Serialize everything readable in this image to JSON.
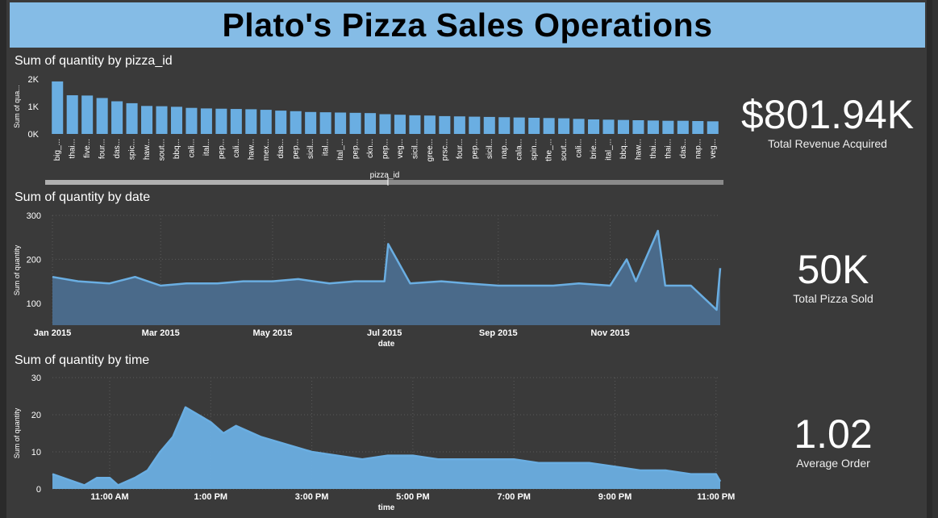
{
  "header": {
    "title": "Plato's Pizza Sales Operations"
  },
  "colors": {
    "bar": "#6aaee2",
    "line": "#6aaee2",
    "area": "#4a6a8a",
    "background": "#3a3a3a",
    "banner": "#85bce6"
  },
  "kpis": [
    {
      "value": "$801.94K",
      "label": "Total Revenue Acquired"
    },
    {
      "value": "50K",
      "label": "Total Pizza Sold"
    },
    {
      "value": "1.02",
      "label": "Average Order"
    }
  ],
  "chart_data": [
    {
      "type": "bar",
      "title": "Sum of quantity by pizza_id",
      "xlabel": "pizza_id",
      "ylabel": "Sum of qua...",
      "ylim": [
        0,
        2000
      ],
      "yticks": [
        {
          "v": 0,
          "label": "0K"
        },
        {
          "v": 1000,
          "label": "1K"
        },
        {
          "v": 2000,
          "label": "2K"
        }
      ],
      "categories": [
        "big_...",
        "thai...",
        "five...",
        "four...",
        "das...",
        "spic...",
        "haw...",
        "sout...",
        "bbq...",
        "cali...",
        "ital...",
        "pep...",
        "cali...",
        "haw...",
        "mex...",
        "das...",
        "pep...",
        "sicil...",
        "ital...",
        "ital_...",
        "pep...",
        "ckn...",
        "pep...",
        "veg...",
        "sicil...",
        "gree...",
        "prsc...",
        "four...",
        "pep...",
        "sicil...",
        "nap...",
        "cala...",
        "spin...",
        "the_...",
        "sout...",
        "cali...",
        "brie...",
        "ital_...",
        "bbq...",
        "haw...",
        "thai...",
        "thai...",
        "das...",
        "nap...",
        "veg..."
      ],
      "values": [
        1914,
        1410,
        1400,
        1310,
        1190,
        1120,
        1020,
        1010,
        990,
        950,
        930,
        920,
        910,
        900,
        880,
        850,
        830,
        800,
        790,
        780,
        770,
        760,
        720,
        700,
        680,
        670,
        650,
        640,
        630,
        620,
        610,
        600,
        590,
        580,
        570,
        550,
        530,
        520,
        510,
        500,
        490,
        480,
        480,
        470,
        460
      ],
      "grid": false
    },
    {
      "type": "area",
      "title": "Sum of quantity by date",
      "xlabel": "date",
      "ylabel": "Sum of quantity",
      "ylim": [
        50,
        300
      ],
      "yticks": [
        100,
        200,
        300
      ],
      "xlim": [
        "2015-01-01",
        "2015-12-31"
      ],
      "xticks": [
        "Jan 2015",
        "Mar 2015",
        "May 2015",
        "Jul 2015",
        "Sep 2015",
        "Nov 2015"
      ],
      "x": [
        "2015-01-01",
        "2015-01-15",
        "2015-02-01",
        "2015-02-15",
        "2015-03-01",
        "2015-03-15",
        "2015-04-01",
        "2015-04-15",
        "2015-05-01",
        "2015-05-15",
        "2015-06-01",
        "2015-06-15",
        "2015-07-01",
        "2015-07-03",
        "2015-07-15",
        "2015-08-01",
        "2015-08-15",
        "2015-09-01",
        "2015-09-15",
        "2015-10-01",
        "2015-10-15",
        "2015-11-01",
        "2015-11-10",
        "2015-11-15",
        "2015-11-27",
        "2015-12-01",
        "2015-12-15",
        "2015-12-29",
        "2015-12-31"
      ],
      "values": [
        160,
        150,
        145,
        160,
        140,
        145,
        145,
        150,
        150,
        155,
        145,
        150,
        150,
        235,
        145,
        150,
        145,
        140,
        140,
        140,
        145,
        140,
        200,
        150,
        265,
        140,
        140,
        85,
        180
      ],
      "grid": true
    },
    {
      "type": "area",
      "title": "Sum of quantity by time",
      "xlabel": "time",
      "ylabel": "Sum of quantity",
      "ylim": [
        0,
        30
      ],
      "yticks": [
        0,
        10,
        20,
        30
      ],
      "xlim": [
        "09:52",
        "23:05"
      ],
      "xticks": [
        "11:00 AM",
        "1:00 PM",
        "3:00 PM",
        "5:00 PM",
        "7:00 PM",
        "9:00 PM",
        "11:00 PM"
      ],
      "x": [
        "09:52",
        "10:30",
        "10:45",
        "11:00",
        "11:10",
        "11:30",
        "11:45",
        "12:00",
        "12:15",
        "12:30",
        "12:45",
        "13:00",
        "13:15",
        "13:30",
        "14:00",
        "14:30",
        "15:00",
        "15:30",
        "16:00",
        "16:30",
        "17:00",
        "17:30",
        "18:00",
        "18:30",
        "19:00",
        "19:30",
        "20:00",
        "20:30",
        "21:00",
        "21:30",
        "22:00",
        "22:30",
        "23:00",
        "23:05"
      ],
      "values": [
        4,
        1,
        3,
        3,
        1,
        3,
        5,
        10,
        14,
        22,
        20,
        18,
        15,
        17,
        14,
        12,
        10,
        9,
        8,
        9,
        9,
        8,
        8,
        8,
        8,
        7,
        7,
        7,
        6,
        5,
        5,
        4,
        4,
        2
      ],
      "grid": true
    }
  ]
}
